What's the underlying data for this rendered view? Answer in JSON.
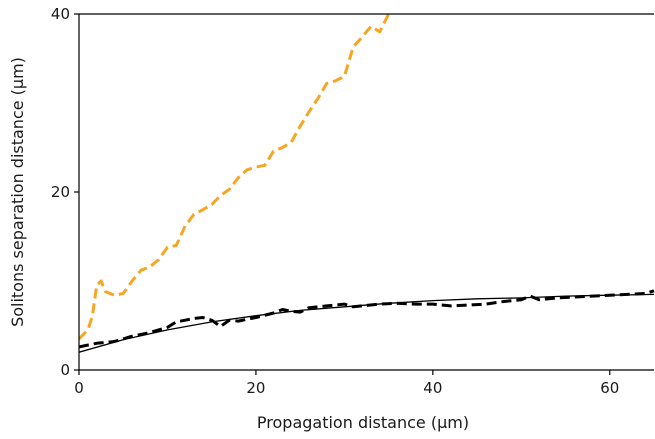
{
  "chart_data": {
    "type": "line",
    "title": "",
    "xlabel": "Propagation distance (µm)",
    "ylabel": "Solitons separation distance (µm)",
    "xlim": [
      0,
      65
    ],
    "ylim": [
      0,
      40
    ],
    "xticks": [
      0,
      20,
      40,
      60
    ],
    "yticks": [
      0,
      20,
      40
    ],
    "grid": false,
    "legend": "none",
    "series": [
      {
        "style": "dashed",
        "color": "#F5A623",
        "x": [
          0,
          1,
          1.5,
          2,
          2.5,
          3,
          4,
          5,
          6,
          7,
          8,
          9,
          10,
          11,
          12,
          13,
          14,
          15,
          16,
          17,
          18,
          19,
          20,
          21,
          22,
          23,
          24,
          25,
          26,
          27,
          28,
          29,
          30,
          31,
          32,
          33,
          34,
          35
        ],
        "y": [
          3.5,
          4.5,
          6,
          9.5,
          10,
          8.8,
          8.4,
          8.6,
          10,
          11.2,
          11.6,
          12.4,
          13.8,
          14,
          16.2,
          17.5,
          18,
          18.6,
          19.6,
          20.3,
          21.6,
          22.5,
          22.8,
          23,
          24.6,
          25,
          25.6,
          27.4,
          29,
          30.5,
          32.2,
          32.5,
          33,
          36.3,
          37.4,
          38.6,
          38,
          40
        ]
      },
      {
        "style": "dashed",
        "color": "#000000",
        "x": [
          0,
          2,
          4,
          6,
          8,
          10,
          11,
          12,
          13,
          14,
          15,
          16,
          17,
          18,
          20,
          22,
          23,
          24,
          25,
          26,
          28,
          30,
          31,
          32,
          34,
          36,
          38,
          40,
          42,
          44,
          46,
          48,
          50,
          51,
          52,
          54,
          56,
          58,
          60,
          62,
          64,
          65
        ],
        "y": [
          2.6,
          3,
          3.2,
          3.8,
          4.2,
          4.8,
          5.4,
          5.6,
          5.8,
          5.9,
          5.6,
          4.9,
          5.6,
          5.5,
          5.9,
          6.4,
          6.8,
          6.6,
          6.5,
          7,
          7.2,
          7.4,
          7.1,
          7.2,
          7.4,
          7.5,
          7.4,
          7.4,
          7.2,
          7.3,
          7.4,
          7.7,
          7.9,
          8.3,
          7.9,
          8.1,
          8.2,
          8.3,
          8.4,
          8.5,
          8.6,
          8.9
        ]
      },
      {
        "style": "solid",
        "color": "#000000",
        "x": [
          0,
          5,
          10,
          15,
          20,
          25,
          30,
          35,
          40,
          45,
          50,
          55,
          60,
          65
        ],
        "y": [
          2.0,
          3.4,
          4.5,
          5.4,
          6.1,
          6.7,
          7.1,
          7.5,
          7.8,
          8.0,
          8.1,
          8.3,
          8.4,
          8.5
        ]
      }
    ]
  }
}
